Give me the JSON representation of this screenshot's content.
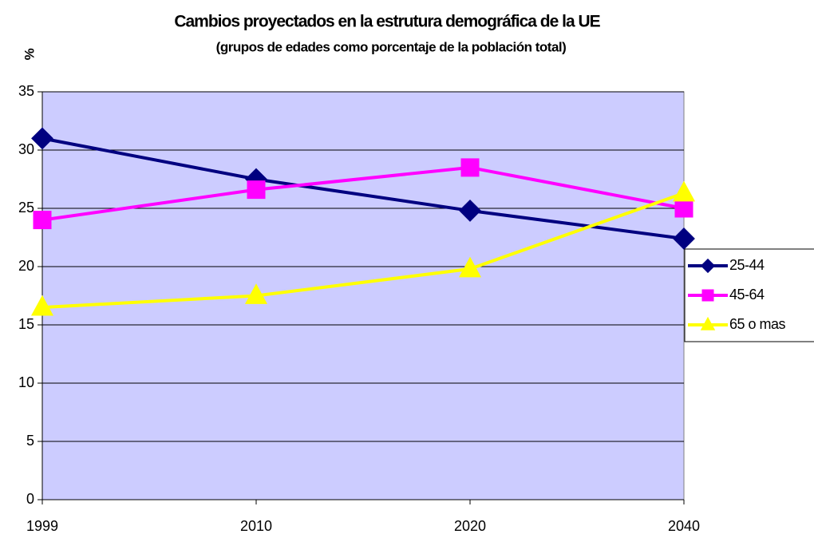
{
  "chart_data": {
    "type": "line",
    "title": "Cambios proyectados en la estrutura demográfica de la UE",
    "subtitle": "(grupos de edades como porcentaje de la población total)",
    "y_label": "%",
    "categories": [
      "1999",
      "2010",
      "2020",
      "2040"
    ],
    "series": [
      {
        "name": "25-44",
        "color": "#000080",
        "marker": "diamond",
        "values": [
          31.0,
          27.5,
          24.8,
          22.4
        ]
      },
      {
        "name": "45-64",
        "color": "#ff00ff",
        "marker": "square",
        "values": [
          24.0,
          26.6,
          28.5,
          25.0
        ]
      },
      {
        "name": "65 o mas",
        "color": "#ffff00",
        "marker": "triangle",
        "values": [
          16.5,
          17.5,
          19.8,
          26.3
        ]
      }
    ],
    "ylim": [
      0,
      35
    ],
    "yticks": [
      0,
      5,
      10,
      15,
      20,
      25,
      30,
      35
    ],
    "grid": true,
    "plot_background": "#ccccff",
    "legend": "right"
  }
}
